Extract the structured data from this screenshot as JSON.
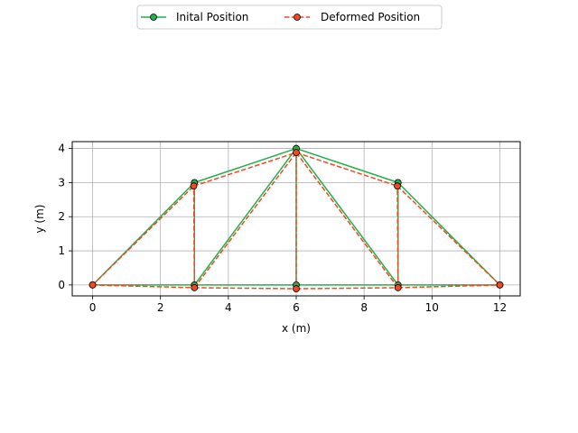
{
  "chart_data": {
    "type": "line",
    "title": "",
    "xlabel": "x (m)",
    "ylabel": "y (m)",
    "xlim": [
      -0.6,
      12.6
    ],
    "ylim": [
      -0.32,
      4.2
    ],
    "xticks": [
      0,
      2,
      4,
      6,
      8,
      10,
      12
    ],
    "yticks": [
      0,
      1,
      2,
      3,
      4
    ],
    "grid": true,
    "legend_position": "top-center",
    "aspect": "equal",
    "series": [
      {
        "name": "Inital Position",
        "color": "#22b04a",
        "linestyle": "solid",
        "marker": "circle",
        "nodes": [
          [
            0,
            0
          ],
          [
            3,
            0
          ],
          [
            6,
            0
          ],
          [
            9,
            0
          ],
          [
            12,
            0
          ],
          [
            3,
            3
          ],
          [
            6,
            4
          ],
          [
            9,
            3
          ]
        ],
        "members": [
          [
            0,
            1
          ],
          [
            1,
            2
          ],
          [
            2,
            3
          ],
          [
            3,
            4
          ],
          [
            0,
            5
          ],
          [
            5,
            6
          ],
          [
            6,
            7
          ],
          [
            7,
            4
          ],
          [
            1,
            5
          ],
          [
            2,
            6
          ],
          [
            3,
            7
          ],
          [
            1,
            6
          ],
          [
            6,
            3
          ]
        ]
      },
      {
        "name": "Deformed Position",
        "color": "#f04a23",
        "linestyle": "dashed",
        "marker": "circle",
        "nodes": [
          [
            0,
            0
          ],
          [
            3,
            -0.08
          ],
          [
            6,
            -0.11
          ],
          [
            9,
            -0.08
          ],
          [
            12,
            0
          ],
          [
            2.98,
            2.9
          ],
          [
            6,
            3.88
          ],
          [
            8.98,
            2.9
          ]
        ],
        "members": [
          [
            0,
            1
          ],
          [
            1,
            2
          ],
          [
            2,
            3
          ],
          [
            3,
            4
          ],
          [
            0,
            5
          ],
          [
            5,
            6
          ],
          [
            6,
            7
          ],
          [
            7,
            4
          ],
          [
            1,
            5
          ],
          [
            2,
            6
          ],
          [
            3,
            7
          ],
          [
            1,
            6
          ],
          [
            6,
            3
          ]
        ]
      }
    ]
  }
}
